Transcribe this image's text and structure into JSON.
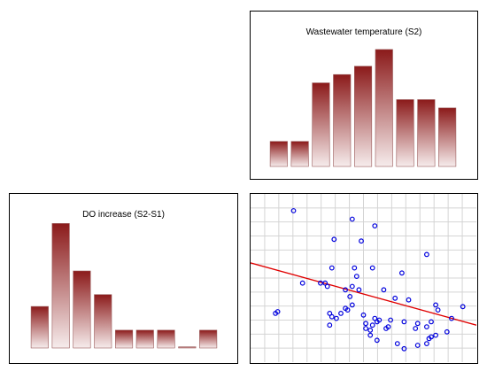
{
  "chart_data": [
    {
      "type": "bar",
      "title": "Wastewater temperature (S2)",
      "values": [
        3,
        3,
        10,
        11,
        12,
        14,
        8,
        8,
        7
      ],
      "ylim": [
        0,
        16
      ],
      "grid": false,
      "color": "#8b1a1a"
    },
    {
      "type": "bar",
      "title": "DO increase (S2-S1)",
      "values": [
        7,
        21,
        13,
        9,
        3,
        3,
        3,
        0.2,
        3
      ],
      "ylim": [
        0,
        23
      ],
      "grid": false,
      "color": "#8b1a1a"
    },
    {
      "type": "scatter",
      "title": "",
      "grid": true,
      "xlim": [
        0,
        100
      ],
      "ylim": [
        0,
        100
      ],
      "point_color": "#0000dd",
      "line_color": "#e00000",
      "trendline": {
        "x": [
          0,
          100
        ],
        "y": [
          59,
          22
        ]
      },
      "points": [
        [
          19,
          90
        ],
        [
          45,
          85
        ],
        [
          55,
          81
        ],
        [
          37,
          73
        ],
        [
          49,
          72
        ],
        [
          78,
          64
        ],
        [
          36,
          56
        ],
        [
          46,
          56
        ],
        [
          54,
          56
        ],
        [
          47,
          51
        ],
        [
          67,
          53
        ],
        [
          23,
          47
        ],
        [
          31,
          47
        ],
        [
          34,
          45
        ],
        [
          33,
          47
        ],
        [
          45,
          45
        ],
        [
          42,
          43
        ],
        [
          48,
          43
        ],
        [
          44,
          39
        ],
        [
          59,
          43
        ],
        [
          64,
          38
        ],
        [
          45,
          34
        ],
        [
          70,
          37
        ],
        [
          82,
          34
        ],
        [
          12,
          30
        ],
        [
          11,
          29
        ],
        [
          43,
          31
        ],
        [
          35,
          29
        ],
        [
          40,
          29
        ],
        [
          42,
          32
        ],
        [
          83,
          31
        ],
        [
          36,
          27
        ],
        [
          50,
          28
        ],
        [
          55,
          26
        ],
        [
          38,
          26
        ],
        [
          56,
          24
        ],
        [
          80,
          24
        ],
        [
          89,
          26
        ],
        [
          94,
          33
        ],
        [
          51,
          23
        ],
        [
          54,
          22
        ],
        [
          51,
          20
        ],
        [
          57,
          25
        ],
        [
          62,
          25
        ],
        [
          68,
          24
        ],
        [
          74,
          23
        ],
        [
          61,
          21
        ],
        [
          35,
          22
        ],
        [
          53,
          19
        ],
        [
          60,
          20
        ],
        [
          73,
          20
        ],
        [
          78,
          21
        ],
        [
          87,
          18
        ],
        [
          80,
          15
        ],
        [
          53,
          16
        ],
        [
          56,
          13
        ],
        [
          65,
          11
        ],
        [
          68,
          8
        ],
        [
          74,
          10
        ],
        [
          78,
          11
        ],
        [
          79,
          14
        ],
        [
          82,
          16
        ]
      ]
    }
  ]
}
